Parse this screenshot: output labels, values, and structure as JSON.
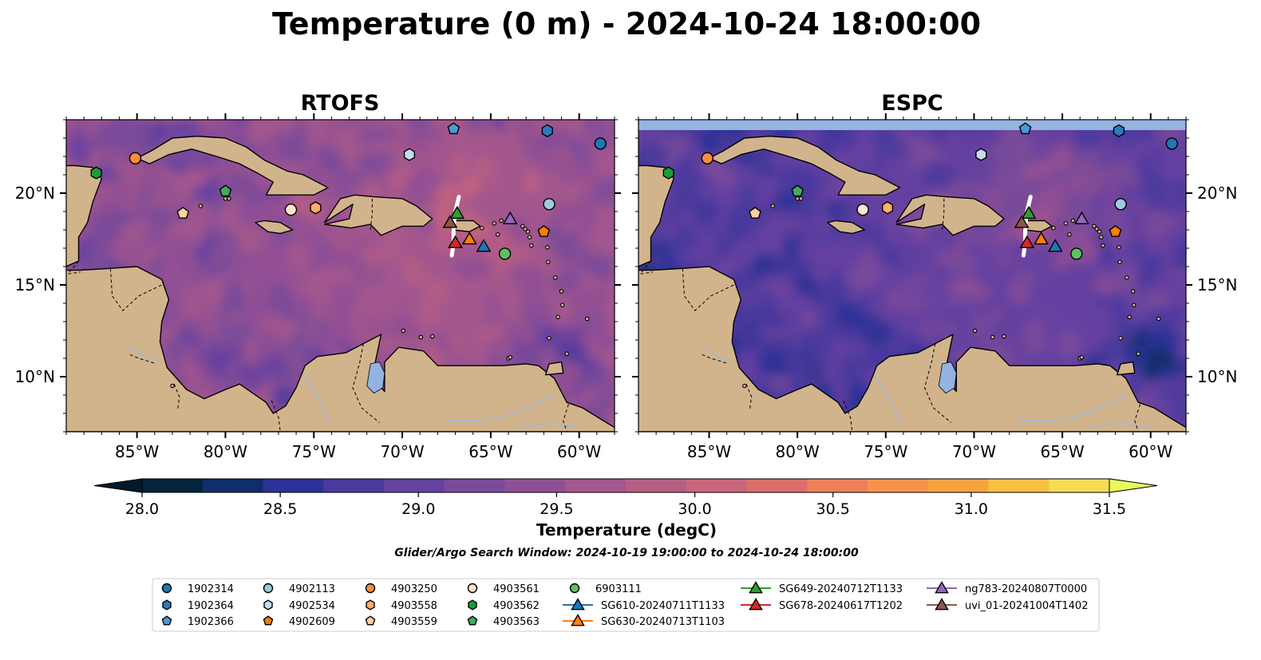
{
  "figure": {
    "title": "Temperature (0 m) - 2024-10-24 18:00:00",
    "search_window": "Glider/Argo Search Window: 2024-10-19 19:00:00 to 2024-10-24 18:00:00"
  },
  "chart_data": {
    "type": "heatmap",
    "variable": "Temperature",
    "depth": "0 m",
    "time": "2024-10-24 18:00:00",
    "panels": [
      {
        "title": "RTOFS",
        "ocean_bias": "warmer"
      },
      {
        "title": "ESPC",
        "ocean_bias": "cooler"
      }
    ],
    "xlim": [
      -89,
      -58
    ],
    "ylim": [
      7,
      24
    ],
    "x_ticks": [
      -85,
      -80,
      -75,
      -70,
      -65,
      -60
    ],
    "x_tick_labels": [
      "85°W",
      "80°W",
      "75°W",
      "70°W",
      "65°W",
      "60°W"
    ],
    "y_ticks": [
      10,
      15,
      20
    ],
    "y_tick_labels": [
      "10°N",
      "15°N",
      "20°N"
    ],
    "colorbar": {
      "label": "Temperature (degC)",
      "vmin": 28.0,
      "vmax": 31.5,
      "step": 0.25,
      "extend": "both",
      "tick_values": [
        28.0,
        28.5,
        29.0,
        29.5,
        30.0,
        30.5,
        31.0,
        31.5
      ],
      "tick_labels": [
        "28.0",
        "28.5",
        "29.0",
        "29.5",
        "30.0",
        "30.5",
        "31.0",
        "31.5"
      ],
      "colors": [
        "#03243a",
        "#0f2e6b",
        "#2b3295",
        "#4a3a9e",
        "#6541a0",
        "#7a4b9a",
        "#904f94",
        "#a3578d",
        "#b65e84",
        "#c9667b",
        "#dd6e6c",
        "#ee7f59",
        "#f7924a",
        "#f8a43e",
        "#f9c043",
        "#f3db55"
      ],
      "under_color": "#021a2c",
      "over_color": "#e8f95e"
    },
    "legend_position": "bottom",
    "markers": [
      {
        "id": "1902314",
        "lon": -58.8,
        "lat": 22.7,
        "shape": "circle",
        "color": "#1f77b4"
      },
      {
        "id": "1902364",
        "lon": -61.8,
        "lat": 23.4,
        "shape": "hexagon",
        "color": "#2a7bbf"
      },
      {
        "id": "1902366",
        "lon": -67.1,
        "lat": 23.5,
        "shape": "pentagon",
        "color": "#4a9ad6"
      },
      {
        "id": "4902113",
        "lon": -61.7,
        "lat": 19.4,
        "shape": "circle",
        "color": "#9ecae1"
      },
      {
        "id": "4902534",
        "lon": -69.6,
        "lat": 22.1,
        "shape": "hexagon",
        "color": "#c6dbef"
      },
      {
        "id": "4902609",
        "lon": -62.0,
        "lat": 17.9,
        "shape": "pentagon",
        "color": "#f57f00"
      },
      {
        "id": "4903250",
        "lon": -85.1,
        "lat": 21.9,
        "shape": "circle",
        "color": "#fd8d3c"
      },
      {
        "id": "4903558",
        "lon": -74.9,
        "lat": 19.2,
        "shape": "hexagon",
        "color": "#fdae6b"
      },
      {
        "id": "4903559",
        "lon": -82.4,
        "lat": 18.9,
        "shape": "pentagon",
        "color": "#fdd0a2"
      },
      {
        "id": "4903561",
        "lon": -76.3,
        "lat": 19.1,
        "shape": "circle",
        "color": "#fee6ce"
      },
      {
        "id": "4903562",
        "lon": -87.3,
        "lat": 21.1,
        "shape": "hexagon",
        "color": "#1e9a3a"
      },
      {
        "id": "4903563",
        "lon": -80.0,
        "lat": 20.1,
        "shape": "pentagon",
        "color": "#41ab5d"
      },
      {
        "id": "6903111",
        "lon": -64.2,
        "lat": 16.7,
        "shape": "circle",
        "color": "#5cc161"
      },
      {
        "id": "SG610-20240711T1133",
        "lon": -65.4,
        "lat": 17.1,
        "shape": "triangle",
        "color": "#1f77b4"
      },
      {
        "id": "SG630-20240713T1103",
        "lon": -66.2,
        "lat": 17.5,
        "shape": "triangle",
        "color": "#ff7f0e"
      },
      {
        "id": "SG649-20240712T1133",
        "lon": -66.9,
        "lat": 18.9,
        "shape": "triangle",
        "color": "#2ca02c"
      },
      {
        "id": "SG678-20240617T1202",
        "lon": -67.0,
        "lat": 17.3,
        "shape": "triangle",
        "color": "#d62728"
      },
      {
        "id": "ng783-20240807T0000",
        "lon": -63.9,
        "lat": 18.6,
        "shape": "triangle",
        "color": "#9467bd"
      },
      {
        "id": "uvi_01-20241004T1402",
        "lon": -67.3,
        "lat": 18.4,
        "shape": "triangle",
        "color": "#8c564b"
      }
    ]
  }
}
